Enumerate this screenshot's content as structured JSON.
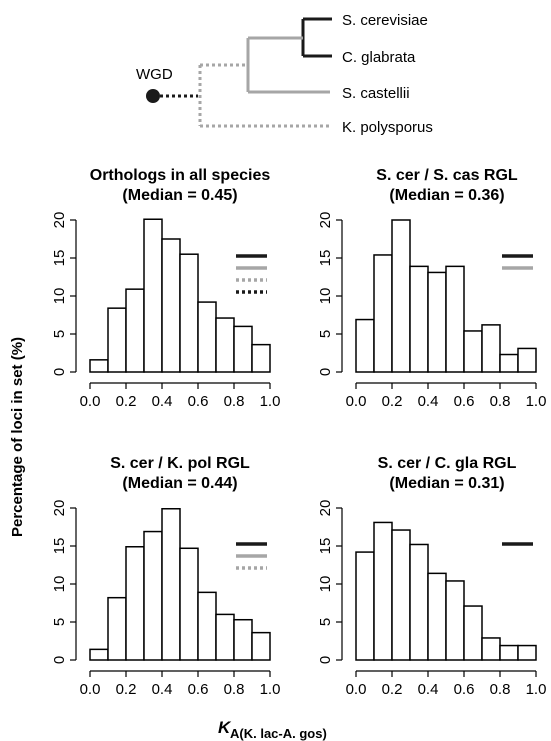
{
  "tree": {
    "root_label": "WGD",
    "taxa": [
      "S. cerevisiae",
      "C. glabrata",
      "S. castellii",
      "K. polysporus"
    ],
    "colors": {
      "black": "#1a1a1a",
      "gray": "#a6a6a6"
    }
  },
  "y_axis_label": "Percentage of loci in set (%)",
  "x_axis_label": {
    "main": "K",
    "sub": "A(K. lac-A. gos)"
  },
  "chart_data": [
    {
      "type": "bar",
      "title": "Orthologs in all species",
      "subtitle": "(Median = 0.45)",
      "bin_edges": [
        0.0,
        0.1,
        0.2,
        0.3,
        0.4,
        0.5,
        0.6,
        0.7,
        0.8,
        0.9,
        1.0
      ],
      "values": [
        1.6,
        8.4,
        10.9,
        20.1,
        17.5,
        15.5,
        9.2,
        7.1,
        6.0,
        3.6
      ],
      "ylim": [
        0,
        20
      ],
      "yticks": [
        0,
        5,
        10,
        15,
        20
      ],
      "xlim": [
        0,
        1
      ],
      "xticks": [
        "0.0",
        "0.2",
        "0.4",
        "0.6",
        "0.8",
        "1.0"
      ],
      "legend_lines": [
        "solid-black",
        "solid-gray",
        "dotted-gray",
        "dotted-black"
      ]
    },
    {
      "type": "bar",
      "title": "S. cer / S. cas RGL",
      "subtitle": "(Median = 0.36)",
      "bin_edges": [
        0.0,
        0.1,
        0.2,
        0.3,
        0.4,
        0.5,
        0.6,
        0.7,
        0.8,
        0.9,
        1.0
      ],
      "values": [
        6.9,
        15.4,
        20.0,
        13.9,
        13.1,
        13.9,
        5.4,
        6.2,
        2.3,
        3.1
      ],
      "ylim": [
        0,
        20
      ],
      "yticks": [
        0,
        5,
        10,
        15,
        20
      ],
      "xlim": [
        0,
        1
      ],
      "xticks": [
        "0.0",
        "0.2",
        "0.4",
        "0.6",
        "0.8",
        "1.0"
      ],
      "legend_lines": [
        "solid-black",
        "solid-gray"
      ]
    },
    {
      "type": "bar",
      "title": "S. cer / K. pol RGL",
      "subtitle": "(Median = 0.44)",
      "bin_edges": [
        0.0,
        0.1,
        0.2,
        0.3,
        0.4,
        0.5,
        0.6,
        0.7,
        0.8,
        0.9,
        1.0
      ],
      "values": [
        1.4,
        8.2,
        14.9,
        16.9,
        19.9,
        14.7,
        8.9,
        6.0,
        5.3,
        3.6
      ],
      "ylim": [
        0,
        20
      ],
      "yticks": [
        0,
        5,
        10,
        15,
        20
      ],
      "xlim": [
        0,
        1
      ],
      "xticks": [
        "0.0",
        "0.2",
        "0.4",
        "0.6",
        "0.8",
        "1.0"
      ],
      "legend_lines": [
        "solid-black",
        "solid-gray",
        "dotted-gray"
      ]
    },
    {
      "type": "bar",
      "title": "S. cer / C. gla RGL",
      "subtitle": "(Median = 0.31)",
      "bin_edges": [
        0.0,
        0.1,
        0.2,
        0.3,
        0.4,
        0.5,
        0.6,
        0.7,
        0.8,
        0.9,
        1.0
      ],
      "values": [
        14.2,
        18.1,
        17.1,
        15.2,
        11.4,
        10.4,
        7.1,
        2.9,
        1.9,
        1.9
      ],
      "ylim": [
        0,
        20
      ],
      "yticks": [
        0,
        5,
        10,
        15,
        20
      ],
      "xlim": [
        0,
        1
      ],
      "xticks": [
        "0.0",
        "0.2",
        "0.4",
        "0.6",
        "0.8",
        "1.0"
      ],
      "legend_lines": [
        "solid-black"
      ]
    }
  ]
}
